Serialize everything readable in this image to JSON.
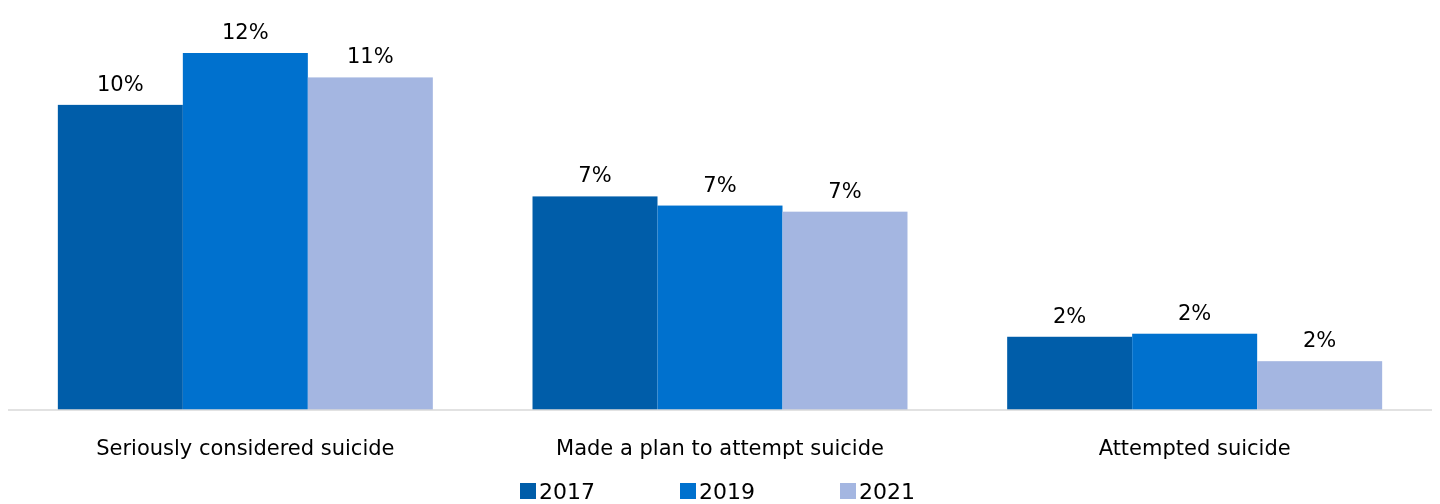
{
  "chart_data": {
    "type": "bar",
    "categories": [
      "Seriously considered suicide",
      "Made a plan to attempt suicide",
      "Attempted suicide"
    ],
    "series": [
      {
        "name": "2017",
        "color": "#005da9",
        "values": [
          10,
          7.0,
          2.4
        ],
        "value_labels": [
          "10%",
          "7%",
          "2%"
        ]
      },
      {
        "name": "2019",
        "color": "#0071ce",
        "values": [
          11.7,
          6.7,
          2.5
        ],
        "value_labels": [
          "12%",
          "7%",
          "2%"
        ]
      },
      {
        "name": "2021",
        "color": "#a4b6e1",
        "values": [
          10.9,
          6.5,
          1.6
        ],
        "value_labels": [
          "11%",
          "7%",
          "2%"
        ]
      }
    ],
    "legend": "bottom"
  }
}
